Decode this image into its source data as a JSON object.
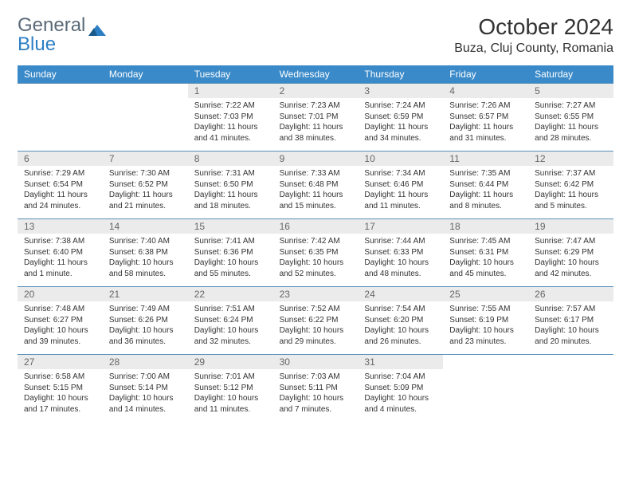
{
  "logo": {
    "text1": "General",
    "text2": "Blue"
  },
  "title": "October 2024",
  "location": "Buza, Cluj County, Romania",
  "colors": {
    "header_bg": "#3a8ac9",
    "header_text": "#ffffff",
    "daynum_bg": "#ebebeb",
    "daynum_text": "#666666",
    "week_border": "#5a8fb8",
    "body_text": "#333333",
    "logo_gray": "#5a6a78",
    "logo_blue": "#2d7fc4"
  },
  "day_names": [
    "Sunday",
    "Monday",
    "Tuesday",
    "Wednesday",
    "Thursday",
    "Friday",
    "Saturday"
  ],
  "weeks": [
    [
      null,
      null,
      {
        "n": "1",
        "sunrise": "7:22 AM",
        "sunset": "7:03 PM",
        "daylight": "11 hours and 41 minutes."
      },
      {
        "n": "2",
        "sunrise": "7:23 AM",
        "sunset": "7:01 PM",
        "daylight": "11 hours and 38 minutes."
      },
      {
        "n": "3",
        "sunrise": "7:24 AM",
        "sunset": "6:59 PM",
        "daylight": "11 hours and 34 minutes."
      },
      {
        "n": "4",
        "sunrise": "7:26 AM",
        "sunset": "6:57 PM",
        "daylight": "11 hours and 31 minutes."
      },
      {
        "n": "5",
        "sunrise": "7:27 AM",
        "sunset": "6:55 PM",
        "daylight": "11 hours and 28 minutes."
      }
    ],
    [
      {
        "n": "6",
        "sunrise": "7:29 AM",
        "sunset": "6:54 PM",
        "daylight": "11 hours and 24 minutes."
      },
      {
        "n": "7",
        "sunrise": "7:30 AM",
        "sunset": "6:52 PM",
        "daylight": "11 hours and 21 minutes."
      },
      {
        "n": "8",
        "sunrise": "7:31 AM",
        "sunset": "6:50 PM",
        "daylight": "11 hours and 18 minutes."
      },
      {
        "n": "9",
        "sunrise": "7:33 AM",
        "sunset": "6:48 PM",
        "daylight": "11 hours and 15 minutes."
      },
      {
        "n": "10",
        "sunrise": "7:34 AM",
        "sunset": "6:46 PM",
        "daylight": "11 hours and 11 minutes."
      },
      {
        "n": "11",
        "sunrise": "7:35 AM",
        "sunset": "6:44 PM",
        "daylight": "11 hours and 8 minutes."
      },
      {
        "n": "12",
        "sunrise": "7:37 AM",
        "sunset": "6:42 PM",
        "daylight": "11 hours and 5 minutes."
      }
    ],
    [
      {
        "n": "13",
        "sunrise": "7:38 AM",
        "sunset": "6:40 PM",
        "daylight": "11 hours and 1 minute."
      },
      {
        "n": "14",
        "sunrise": "7:40 AM",
        "sunset": "6:38 PM",
        "daylight": "10 hours and 58 minutes."
      },
      {
        "n": "15",
        "sunrise": "7:41 AM",
        "sunset": "6:36 PM",
        "daylight": "10 hours and 55 minutes."
      },
      {
        "n": "16",
        "sunrise": "7:42 AM",
        "sunset": "6:35 PM",
        "daylight": "10 hours and 52 minutes."
      },
      {
        "n": "17",
        "sunrise": "7:44 AM",
        "sunset": "6:33 PM",
        "daylight": "10 hours and 48 minutes."
      },
      {
        "n": "18",
        "sunrise": "7:45 AM",
        "sunset": "6:31 PM",
        "daylight": "10 hours and 45 minutes."
      },
      {
        "n": "19",
        "sunrise": "7:47 AM",
        "sunset": "6:29 PM",
        "daylight": "10 hours and 42 minutes."
      }
    ],
    [
      {
        "n": "20",
        "sunrise": "7:48 AM",
        "sunset": "6:27 PM",
        "daylight": "10 hours and 39 minutes."
      },
      {
        "n": "21",
        "sunrise": "7:49 AM",
        "sunset": "6:26 PM",
        "daylight": "10 hours and 36 minutes."
      },
      {
        "n": "22",
        "sunrise": "7:51 AM",
        "sunset": "6:24 PM",
        "daylight": "10 hours and 32 minutes."
      },
      {
        "n": "23",
        "sunrise": "7:52 AM",
        "sunset": "6:22 PM",
        "daylight": "10 hours and 29 minutes."
      },
      {
        "n": "24",
        "sunrise": "7:54 AM",
        "sunset": "6:20 PM",
        "daylight": "10 hours and 26 minutes."
      },
      {
        "n": "25",
        "sunrise": "7:55 AM",
        "sunset": "6:19 PM",
        "daylight": "10 hours and 23 minutes."
      },
      {
        "n": "26",
        "sunrise": "7:57 AM",
        "sunset": "6:17 PM",
        "daylight": "10 hours and 20 minutes."
      }
    ],
    [
      {
        "n": "27",
        "sunrise": "6:58 AM",
        "sunset": "5:15 PM",
        "daylight": "10 hours and 17 minutes."
      },
      {
        "n": "28",
        "sunrise": "7:00 AM",
        "sunset": "5:14 PM",
        "daylight": "10 hours and 14 minutes."
      },
      {
        "n": "29",
        "sunrise": "7:01 AM",
        "sunset": "5:12 PM",
        "daylight": "10 hours and 11 minutes."
      },
      {
        "n": "30",
        "sunrise": "7:03 AM",
        "sunset": "5:11 PM",
        "daylight": "10 hours and 7 minutes."
      },
      {
        "n": "31",
        "sunrise": "7:04 AM",
        "sunset": "5:09 PM",
        "daylight": "10 hours and 4 minutes."
      },
      null,
      null
    ]
  ],
  "labels": {
    "sunrise": "Sunrise:",
    "sunset": "Sunset:",
    "daylight": "Daylight:"
  }
}
